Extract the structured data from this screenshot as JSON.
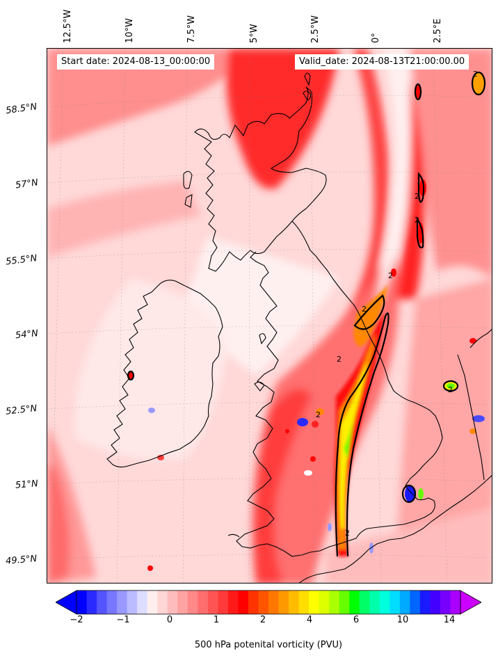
{
  "map": {
    "start_date": "Start date: 2024-08-13_00:00:00",
    "valid_date": "Valid_date: 2024-08-13T21:00:00.00",
    "lon_labels": [
      "12.5°W",
      "10°W",
      "7.5°W",
      "5°W",
      "2.5°W",
      "0°",
      "2.5°E"
    ],
    "lat_labels": [
      "58.5°N",
      "57°N",
      "55.5°N",
      "54°N",
      "52.5°N",
      "51°N",
      "49.5°N"
    ],
    "contour_labels": [
      "2",
      "2",
      "2",
      "2",
      "2",
      "2",
      "2",
      "2",
      "2"
    ],
    "field": "500 hPa potential vorticity",
    "colors": {
      "background": "#ffe4e4",
      "low": "#ffd0d0",
      "mid": "#ff8080",
      "high": "#ff2020",
      "core": "#ff0000",
      "jet_orange": "#ff8800",
      "jet_yellow": "#ffee00",
      "jet_green": "#66ff00",
      "negative": "#4060ff"
    }
  },
  "colorbar": {
    "label": "500 hPa potenital vorticity (PVU)",
    "ticks": [
      "−2",
      "−1",
      "0",
      "1",
      "2",
      "4",
      "6",
      "10",
      "14"
    ],
    "colors": [
      "#0000ff",
      "#2a2aff",
      "#5555ff",
      "#7777ff",
      "#9999ff",
      "#bbbbff",
      "#ddddff",
      "#ffeeee",
      "#ffd6d6",
      "#ffbcbc",
      "#ffa2a2",
      "#ff8888",
      "#ff6e6e",
      "#ff5454",
      "#ff3a3a",
      "#ff1a1a",
      "#ff0000",
      "#ff3300",
      "#ff5500",
      "#ff7700",
      "#ff9900",
      "#ffbb00",
      "#ffdd00",
      "#ffff00",
      "#ddff00",
      "#aaff00",
      "#66ff00",
      "#00ff00",
      "#00ff66",
      "#00ffaa",
      "#00ffdd",
      "#00ddff",
      "#00aaff",
      "#0066ff",
      "#1a1aff",
      "#4400ff",
      "#7700ff",
      "#aa00ff"
    ]
  }
}
